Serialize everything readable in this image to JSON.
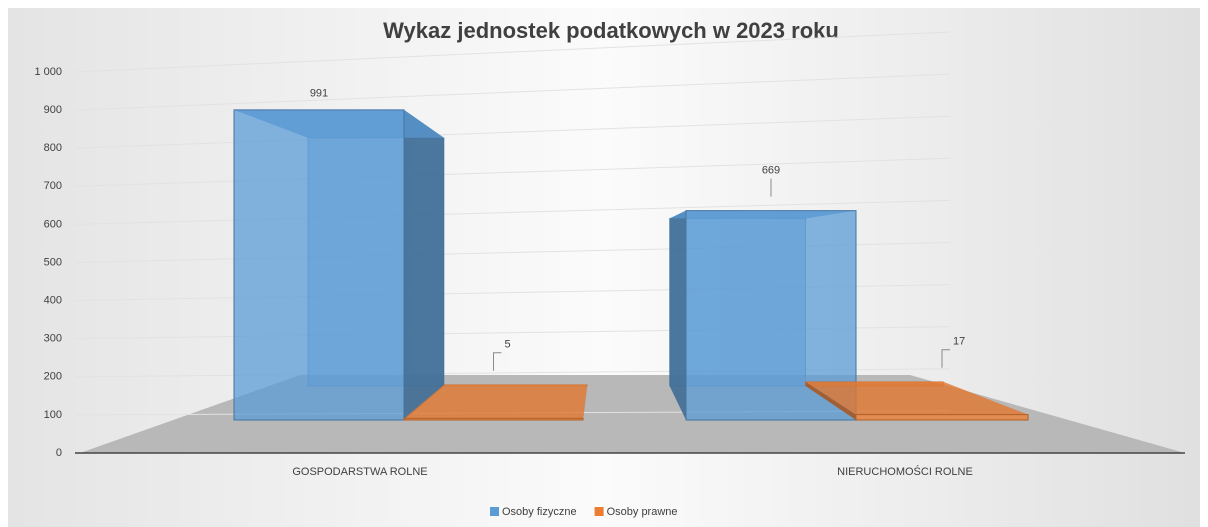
{
  "chart_data": {
    "type": "bar",
    "title": "Wykaz jednostek podatkowych w 2023 roku",
    "categories": [
      "GOSPODARSTWA ROLNE",
      "NIERUCHOMOŚCI ROLNE"
    ],
    "series": [
      {
        "name": "Osoby fizyczne",
        "color": "#5b9bd5",
        "values": [
          991,
          669
        ]
      },
      {
        "name": "Osoby prawne",
        "color": "#ed7d31",
        "values": [
          5,
          17
        ]
      }
    ],
    "ylim": [
      0,
      1000
    ],
    "yticks": [
      0,
      100,
      200,
      300,
      400,
      500,
      600,
      700,
      800,
      900,
      {
        "value": 1000,
        "label": "1 000"
      }
    ],
    "grid": true,
    "legend": "bottom"
  }
}
